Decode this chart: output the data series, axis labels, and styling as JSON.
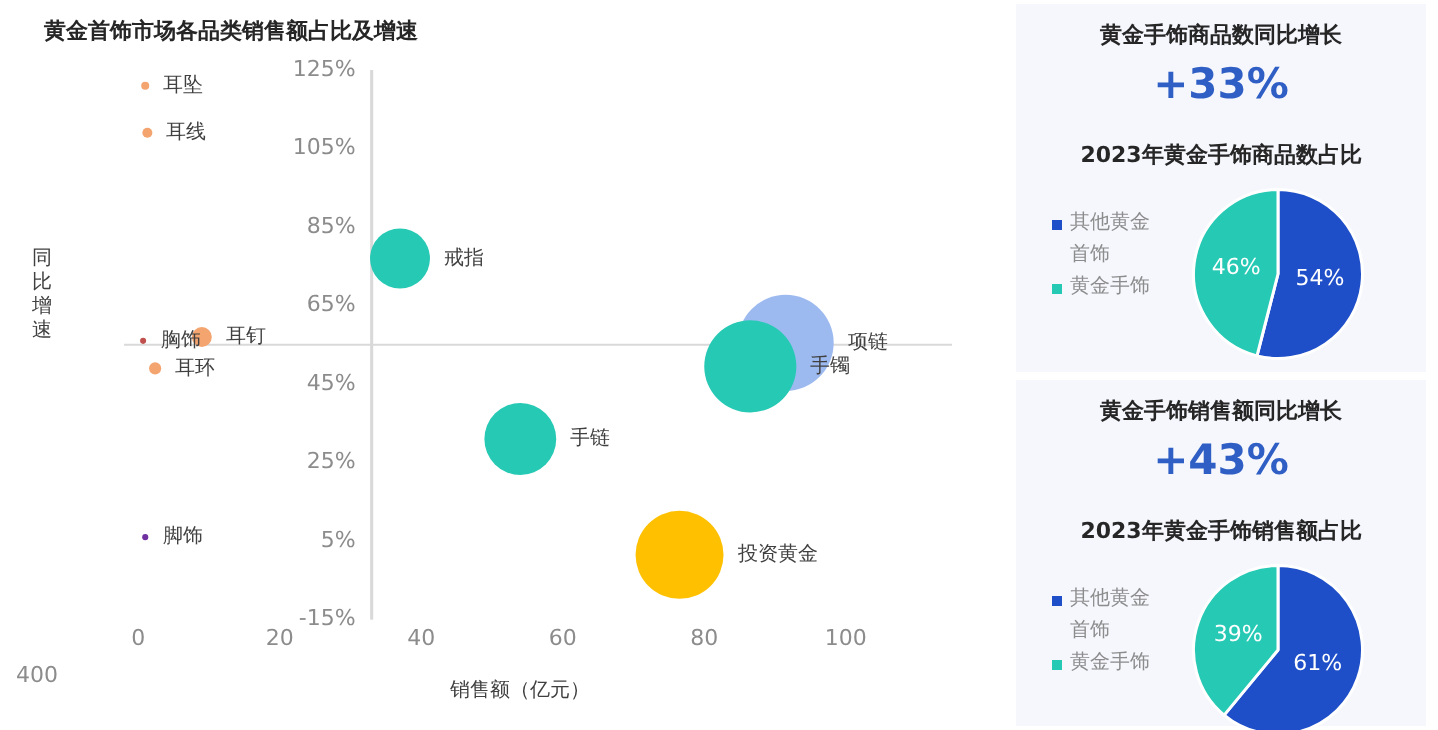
{
  "chart_data": [
    {
      "type": "bubble",
      "title": "黄金首饰市场各品类销售额占比及增速",
      "xlabel": "销售额（亿元）",
      "ylabel": "同比增速",
      "annotations": [
        "400"
      ],
      "xlim": [
        -2,
        115
      ],
      "xticks": [
        0,
        20,
        40,
        60,
        80,
        100
      ],
      "ylim": [
        -15,
        125
      ],
      "yticks": [
        {
          "value": -15,
          "label": "-15%"
        },
        {
          "value": 5,
          "label": "5%"
        },
        {
          "value": 25,
          "label": "25%"
        },
        {
          "value": 45,
          "label": "45%"
        },
        {
          "value": 65,
          "label": "65%"
        },
        {
          "value": 85,
          "label": "85%"
        },
        {
          "value": 105,
          "label": "105%"
        },
        {
          "value": 125,
          "label": "125%"
        }
      ],
      "grid": false,
      "legend": false,
      "ref_lines": [
        {
          "axis": "x",
          "value": 33,
          "color": "#d9d9d9"
        },
        {
          "axis": "y",
          "value": 55,
          "color": "#d9d9d9"
        }
      ],
      "series": [
        {
          "name": "耳坠",
          "color": "#f4a46f",
          "x": [
            1
          ],
          "values": [
            121
          ],
          "sizes": [
            0.007
          ]
        },
        {
          "name": "耳线",
          "color": "#f4a46f",
          "x": [
            1.3
          ],
          "values": [
            109
          ],
          "sizes": [
            0.011
          ]
        },
        {
          "name": "胸饰",
          "color": "#c0504d",
          "x": [
            0.7
          ],
          "values": [
            56
          ],
          "sizes": [
            0.004
          ]
        },
        {
          "name": "耳钉",
          "color": "#f4a46f",
          "x": [
            9
          ],
          "values": [
            57
          ],
          "sizes": [
            0.043
          ]
        },
        {
          "name": "耳环",
          "color": "#f4a46f",
          "x": [
            2.4
          ],
          "values": [
            49
          ],
          "sizes": [
            0.016
          ]
        },
        {
          "name": "脚饰",
          "color": "#7030a0",
          "x": [
            1
          ],
          "values": [
            6
          ],
          "sizes": [
            0.004
          ]
        },
        {
          "name": "戒指",
          "color": "#26c9b4",
          "x": [
            37
          ],
          "values": [
            77
          ],
          "sizes": [
            0.39
          ]
        },
        {
          "name": "手链",
          "color": "#26c9b4",
          "x": [
            54
          ],
          "values": [
            31
          ],
          "sizes": [
            0.56
          ]
        },
        {
          "name": "手镯",
          "color": "#26c9b4",
          "x": [
            86.5
          ],
          "values": [
            49.5
          ],
          "sizes": [
            0.92
          ]
        },
        {
          "name": "项链",
          "color": "#9dbaf0",
          "x": [
            91.5
          ],
          "values": [
            55.5
          ],
          "sizes": [
            1
          ]
        },
        {
          "name": "投资黄金",
          "color": "#ffc000",
          "x": [
            76.5
          ],
          "values": [
            1.5
          ],
          "sizes": [
            0.84
          ]
        }
      ]
    },
    {
      "type": "other",
      "title": "黄金手饰商品数同比增长",
      "annotations": [
        "+33%"
      ]
    },
    {
      "type": "pie",
      "title": "2023年黄金手饰商品数占比",
      "categories": [
        "其他黄金首饰",
        "黄金手饰"
      ],
      "values": [
        54,
        46
      ],
      "colors": [
        "#1f4fc8",
        "#26c9b4"
      ],
      "value_labels": [
        "54%",
        "46%"
      ],
      "legend": "left"
    },
    {
      "type": "other",
      "title": "黄金手饰销售额同比增长",
      "annotations": [
        "+43%"
      ]
    },
    {
      "type": "pie",
      "title": "2023年黄金手饰销售额占比",
      "categories": [
        "其他黄金首饰",
        "黄金手饰"
      ],
      "values": [
        61,
        39
      ],
      "colors": [
        "#1f4fc8",
        "#26c9b4"
      ],
      "value_labels": [
        "61%",
        "39%"
      ],
      "legend": "left"
    }
  ]
}
